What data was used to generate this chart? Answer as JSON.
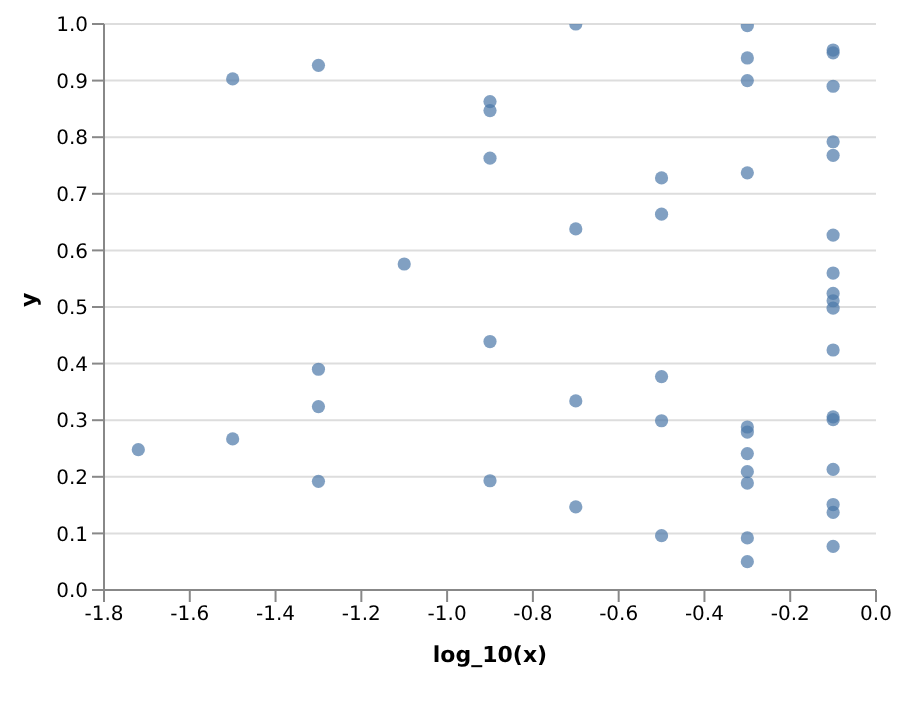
{
  "chart_data": {
    "type": "scatter",
    "xlabel": "log_10(x)",
    "ylabel": "y",
    "marker": "circle",
    "grid": "y",
    "xlim": [
      -1.8,
      0
    ],
    "ylim": [
      0,
      1
    ],
    "xticks": [
      -1.8,
      -1.6,
      -1.4,
      -1.2,
      {
        "value": -1,
        "label": "-1.0"
      },
      -0.8,
      -0.6,
      -0.4,
      -0.2,
      {
        "value": 0,
        "label": "0.0"
      }
    ],
    "yticks": [
      {
        "value": 0,
        "label": "0.0"
      },
      0.1,
      0.2,
      0.3,
      0.4,
      0.5,
      0.6,
      0.7,
      0.8,
      0.9,
      {
        "value": 1,
        "label": "1.0"
      }
    ],
    "series": [
      {
        "color": "#4c78a8",
        "x": [
          -1.72,
          -1.5,
          -1.5,
          -1.3,
          -1.3,
          -1.3,
          -1.3,
          -1.1,
          -0.9,
          -0.9,
          -0.9,
          -0.9,
          -0.9,
          -0.7,
          -0.7,
          -0.7,
          -0.7,
          -0.5,
          -0.5,
          -0.5,
          -0.5,
          -0.5,
          -0.3,
          -0.3,
          -0.3,
          -0.3,
          -0.3,
          -0.3,
          -0.3,
          -0.3,
          -0.3,
          -0.3,
          -0.3,
          -0.1,
          -0.1,
          -0.1,
          -0.1,
          -0.1,
          -0.1,
          -0.1,
          -0.1,
          -0.1,
          -0.1,
          -0.1,
          -0.1,
          -0.1,
          -0.1,
          -0.1,
          -0.1,
          -0.1
        ],
        "values": [
          0.248,
          0.903,
          0.267,
          0.927,
          0.39,
          0.324,
          0.192,
          0.576,
          0.863,
          0.847,
          0.763,
          0.439,
          0.193,
          1.0,
          0.638,
          0.334,
          0.147,
          0.728,
          0.664,
          0.377,
          0.299,
          0.096,
          0.997,
          0.94,
          0.9,
          0.737,
          0.288,
          0.279,
          0.241,
          0.209,
          0.189,
          0.092,
          0.05,
          0.954,
          0.949,
          0.89,
          0.792,
          0.768,
          0.627,
          0.56,
          0.524,
          0.511,
          0.498,
          0.424,
          0.306,
          0.301,
          0.213,
          0.151,
          0.137,
          0.077
        ]
      }
    ]
  }
}
